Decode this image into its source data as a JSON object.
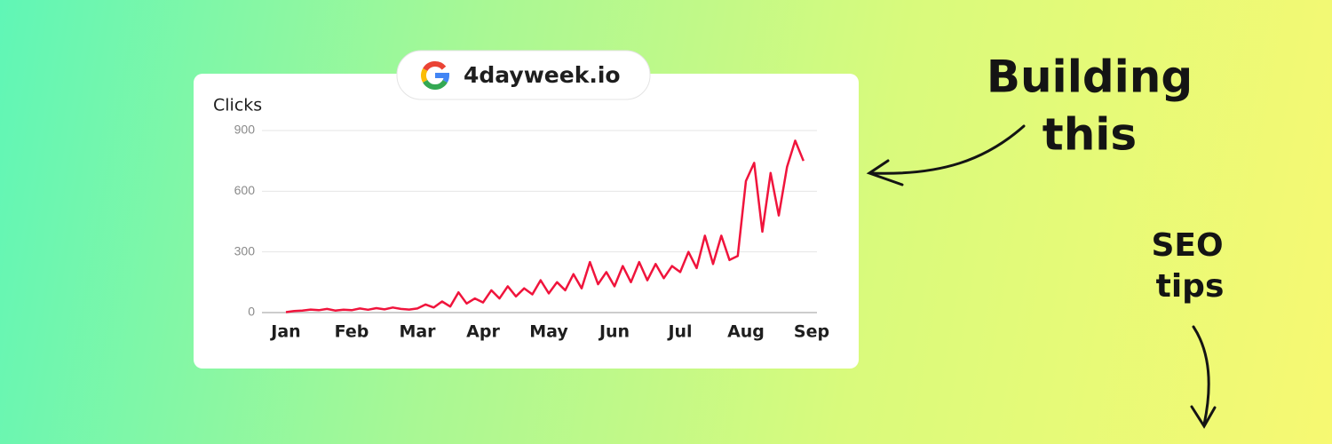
{
  "badge": "4dayweek.io",
  "headline": [
    "Building",
    "this"
  ],
  "side_note": [
    "SEO",
    "tips"
  ],
  "chart_data": {
    "type": "line",
    "y_label": "Clicks",
    "categories": [
      "Jan",
      null,
      null,
      null,
      null,
      null,
      null,
      null,
      "Feb",
      null,
      null,
      null,
      null,
      null,
      null,
      null,
      "Mar",
      null,
      null,
      null,
      null,
      null,
      null,
      null,
      "Apr",
      null,
      null,
      null,
      null,
      null,
      null,
      null,
      "May",
      null,
      null,
      null,
      null,
      null,
      null,
      null,
      "Jun",
      null,
      null,
      null,
      null,
      null,
      null,
      null,
      "Jul",
      null,
      null,
      null,
      null,
      null,
      null,
      null,
      "Aug",
      null,
      null,
      null,
      null,
      null,
      null,
      null,
      "Sep"
    ],
    "values": [
      2,
      8,
      10,
      15,
      12,
      18,
      10,
      14,
      12,
      20,
      14,
      22,
      16,
      25,
      18,
      15,
      20,
      40,
      25,
      55,
      30,
      100,
      45,
      70,
      50,
      110,
      70,
      130,
      80,
      120,
      90,
      160,
      95,
      150,
      110,
      190,
      120,
      250,
      140,
      200,
      130,
      230,
      150,
      250,
      160,
      240,
      170,
      230,
      200,
      300,
      220,
      380,
      240,
      380,
      260,
      280,
      650,
      740,
      400,
      690,
      480,
      720,
      850,
      750,
      null
    ],
    "color": "#f0143c",
    "ylim": [
      0,
      900
    ],
    "yticks": [
      0,
      300,
      600,
      900
    ],
    "grid": true
  }
}
